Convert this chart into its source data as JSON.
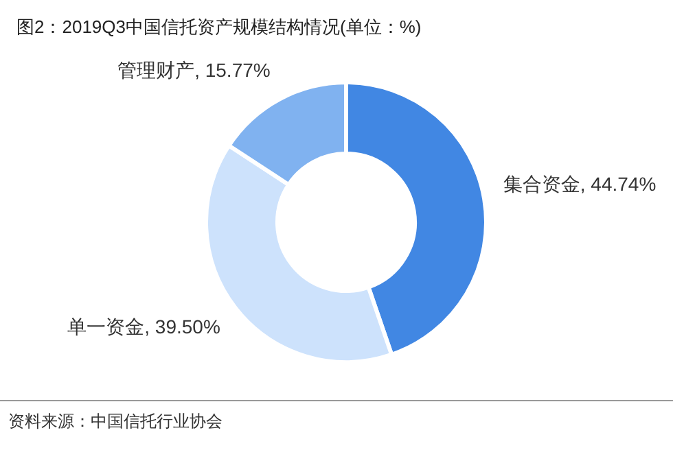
{
  "chart_data": {
    "type": "donut",
    "title": "图2：2019Q3中国信托资产规模结构情况(单位：%)",
    "categories": [
      "集合资金",
      "单一资金",
      "管理财产"
    ],
    "values": [
      44.74,
      39.5,
      15.77
    ],
    "colors": [
      "#4187e3",
      "#cde2fc",
      "#80b2f0"
    ],
    "value_labels": [
      "44.74%",
      "39.50%",
      "15.77%"
    ],
    "annotations": [
      "资料来源：中国信托行业协会"
    ]
  }
}
